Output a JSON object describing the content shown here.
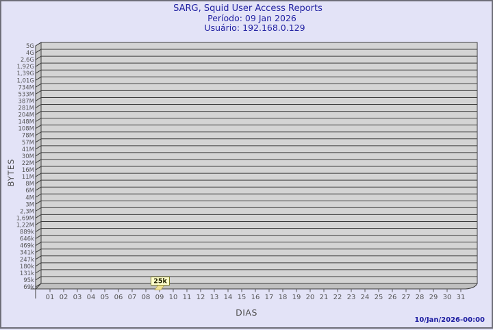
{
  "page": {
    "generated_at": "10/Jan/2026-00:00"
  },
  "chart_data": {
    "type": "bar",
    "style": "3d-projected",
    "title": "SARG, Squid User Access Reports",
    "subtitle": "Período: 09 Jan 2026",
    "user_label": "Usuário: 192.168.0.129",
    "xlabel": "DIAS",
    "ylabel": "BYTES",
    "grid": "horizontal",
    "x_categories": [
      "01",
      "02",
      "03",
      "04",
      "05",
      "06",
      "07",
      "08",
      "09",
      "10",
      "11",
      "12",
      "13",
      "14",
      "15",
      "16",
      "17",
      "18",
      "19",
      "20",
      "21",
      "22",
      "23",
      "24",
      "25",
      "26",
      "27",
      "28",
      "29",
      "30",
      "31"
    ],
    "y_tick_labels_top_to_bottom": [
      "5G",
      "4G",
      "2,6G",
      "1,92G",
      "1,39G",
      "1,01G",
      "734M",
      "533M",
      "387M",
      "281M",
      "204M",
      "148M",
      "108M",
      "78M",
      "57M",
      "41M",
      "30M",
      "22M",
      "16M",
      "11M",
      "8M",
      "6M",
      "4M",
      "3M",
      "2,3M",
      "1,69M",
      "1,22M",
      "889k",
      "646k",
      "469k",
      "341k",
      "247k",
      "180k",
      "131k",
      "95k",
      "69k"
    ],
    "y_range": [
      "69k",
      "5G"
    ],
    "x_range": [
      "01",
      "31"
    ],
    "points": [
      {
        "day": "09",
        "value": 25000,
        "label": "25k"
      }
    ]
  },
  "colors": {
    "background": "#e3e3f7",
    "frame_border": "#6e6e78",
    "plot_fill": "#d4d4d4",
    "wall_fill": "#c8c8c8",
    "floor_fill": "#c0c0c0",
    "grid_line": "#3c3c3c",
    "title_text": "#2222a2",
    "axis_text": "#555555",
    "timestamp_text": "#1a1aa0",
    "point_label_bg": "#ffffcc",
    "point_label_border": "#7c7c28",
    "point_label_text": "#222200",
    "point_fill": "#f0e294",
    "point_border": "#b3a653"
  }
}
